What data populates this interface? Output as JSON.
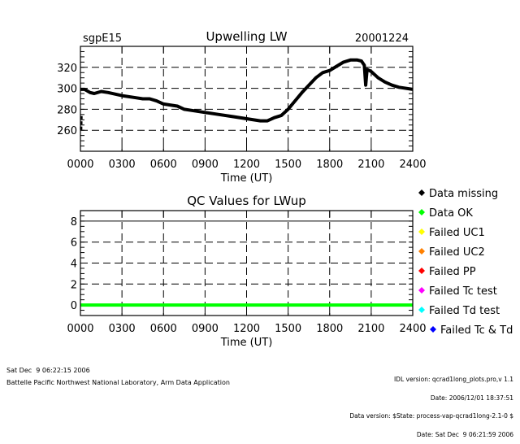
{
  "chart_data": [
    {
      "type": "line",
      "title": "Upwelling LW",
      "site": "sgpE15",
      "date": "20001224",
      "xlabel": "Time (UT)",
      "ylabel": "",
      "xlim": [
        0,
        24
      ],
      "ylim": [
        240,
        340
      ],
      "grid": true,
      "x_tick_labels": [
        "0000",
        "0300",
        "0600",
        "0900",
        "1200",
        "1500",
        "1800",
        "2100",
        "2400"
      ],
      "y_ticks": [
        260,
        280,
        300,
        320
      ],
      "series": [
        {
          "name": "Upwelling LW",
          "color": "#000000",
          "x": [
            0,
            0.3,
            0.7,
            1,
            1.5,
            2,
            3,
            4,
            4.5,
            5,
            5.5,
            6,
            7,
            7.5,
            8,
            9,
            10,
            11,
            12,
            13,
            13.5,
            14,
            14.5,
            15,
            15.5,
            16,
            16.5,
            17,
            17.5,
            18,
            18.5,
            19,
            19.5,
            20,
            20.3,
            20.5,
            20.6,
            20.7,
            21,
            21.5,
            22,
            22.5,
            23,
            24
          ],
          "y": [
            299,
            299,
            296,
            295,
            297,
            296,
            293,
            291,
            290,
            290,
            288,
            285,
            283,
            280,
            279,
            277,
            275,
            273,
            271,
            269,
            269,
            272,
            274,
            280,
            288,
            296,
            303,
            310,
            315,
            317,
            321,
            325,
            327,
            327,
            326,
            322,
            303,
            318,
            316,
            310,
            306,
            303,
            301,
            299
          ]
        },
        {
          "name": "Data missing",
          "color": "#000000",
          "x": [
            0.02,
            0.03,
            0.04
          ],
          "y": [
            262,
            267,
            272
          ]
        }
      ]
    },
    {
      "type": "line",
      "title": "QC Values for LWup",
      "xlabel": "Time (UT)",
      "xlim": [
        0,
        24
      ],
      "ylim": [
        -1,
        9
      ],
      "grid": true,
      "x_tick_labels": [
        "0000",
        "0300",
        "0600",
        "0900",
        "1200",
        "1500",
        "1800",
        "2100",
        "2400"
      ],
      "y_ticks": [
        0,
        2,
        4,
        6,
        8
      ],
      "series": [
        {
          "name": "QC",
          "color": "#00ff00",
          "x": [
            0,
            24
          ],
          "y": [
            0,
            0
          ]
        }
      ],
      "legend": {
        "placement": "right",
        "entries": [
          {
            "label": "Data missing",
            "color": "#000000"
          },
          {
            "label": "Data OK",
            "color": "#00ff00"
          },
          {
            "label": "Failed UC1",
            "color": "#ffff00"
          },
          {
            "label": "Failed UC2",
            "color": "#ff8000"
          },
          {
            "label": "Failed PP",
            "color": "#ff0000"
          },
          {
            "label": "Failed Tc test",
            "color": "#ff00ff"
          },
          {
            "label": "Failed Td test",
            "color": "#00ffff"
          },
          {
            "label": "Failed Tc & Td",
            "color": "#0000ff"
          }
        ]
      }
    }
  ],
  "footer": {
    "run_date": "Sat Dec  9 06:22:15 2006",
    "org": "Battelle Pacific Northwest National Laboratory, Arm Data Application",
    "idl_version": "IDL version: qcrad1long_plots.pro,v 1.1",
    "idl_date": "Date: 2006/12/01 18:37:51",
    "data_version": "Data version: $State: process-vap-qcrad1long-2.1-0 $",
    "data_date": "Date: Sat Dec  9 06:21:59 2006"
  }
}
